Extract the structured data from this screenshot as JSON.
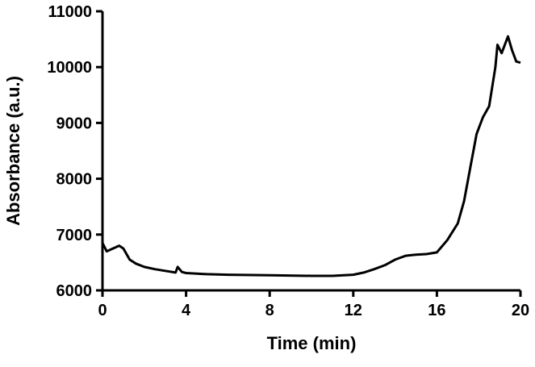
{
  "chart_data": {
    "type": "line",
    "x_label": "Time (min)",
    "y_label": "Absorbance (a.u.)",
    "x": [
      0,
      0.2,
      0.5,
      0.8,
      1.0,
      1.3,
      1.6,
      2,
      2.5,
      3,
      3.5,
      3.6,
      3.8,
      4,
      5,
      6,
      8,
      10,
      11,
      12,
      12.5,
      13,
      13.5,
      14,
      14.5,
      15,
      15.5,
      16,
      16.5,
      17,
      17.3,
      17.6,
      17.9,
      18.2,
      18.5,
      18.8,
      18.9,
      19.1,
      19.4,
      19.6,
      19.8,
      20
    ],
    "values": [
      6850,
      6700,
      6750,
      6800,
      6750,
      6550,
      6480,
      6420,
      6380,
      6350,
      6320,
      6420,
      6330,
      6310,
      6290,
      6280,
      6270,
      6260,
      6260,
      6280,
      6320,
      6380,
      6450,
      6550,
      6620,
      6640,
      6650,
      6680,
      6900,
      7200,
      7600,
      8200,
      8800,
      9100,
      9300,
      10000,
      10400,
      10250,
      10550,
      10300,
      10100,
      10080
    ],
    "color": "#000000",
    "xlim": [
      0,
      20
    ],
    "xticks": [
      0,
      4,
      8,
      12,
      16,
      20
    ],
    "ylim": [
      6000,
      11000
    ],
    "yticks": [
      6000,
      7000,
      8000,
      9000,
      10000,
      11000
    ]
  }
}
